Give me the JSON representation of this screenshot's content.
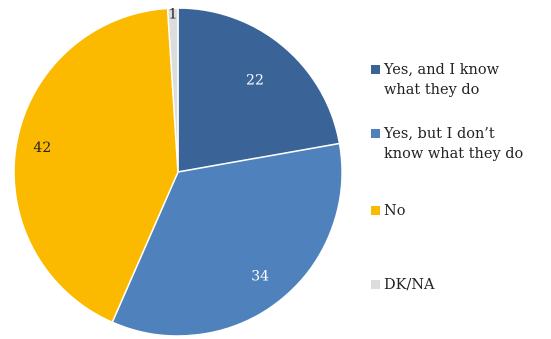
{
  "chart_data": {
    "type": "pie",
    "title": "",
    "legend_position": "right",
    "slices": [
      {
        "label": "Yes, and I know\nwhat they do",
        "value": 22,
        "color": "#3a6498",
        "label_color": "#ffffff"
      },
      {
        "label": "Yes, but I don’t\nknow what they do",
        "value": 34,
        "color": "#4f81bd",
        "label_color": "#ffffff"
      },
      {
        "label": "No",
        "value": 42,
        "color": "#fbba00",
        "label_color": "#222222"
      },
      {
        "label": "DK/NA",
        "value": 1,
        "color": "#dcdcdc",
        "label_color": "#222222"
      }
    ]
  }
}
